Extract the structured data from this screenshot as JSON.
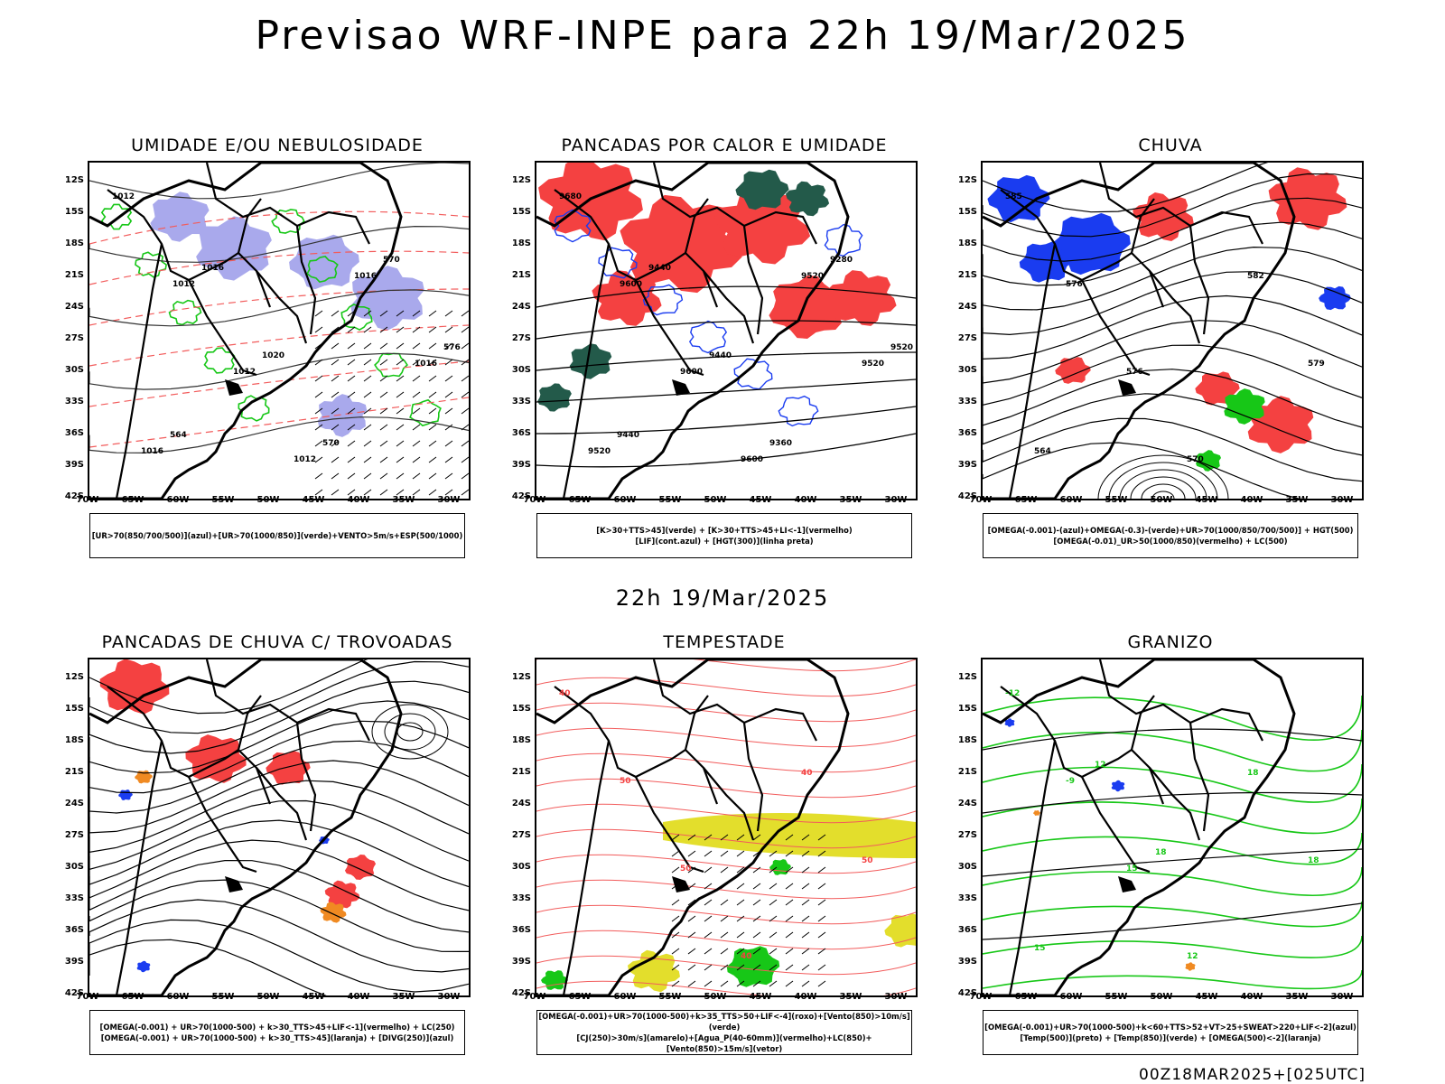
{
  "header": {
    "title": "Previsao WRF-INPE  para 22h 19/Mar/2025",
    "subtitle": "22h 19/Mar/2025",
    "footer": "00Z18MAR2025+[025UTC]"
  },
  "axes": {
    "lat_labels": [
      "12S",
      "15S",
      "18S",
      "21S",
      "24S",
      "27S",
      "30S",
      "33S",
      "36S",
      "39S",
      "42S"
    ],
    "lon_labels": [
      "70W",
      "65W",
      "60W",
      "55W",
      "50W",
      "45W",
      "40W",
      "35W",
      "30W"
    ]
  },
  "colors": {
    "red": "#f44141",
    "green": "#17c717",
    "blue": "#1a3cf0",
    "lavender": "#a9a9ec",
    "dark_teal": "#235a4a",
    "yellow": "#e3de2c",
    "orange": "#f08a22",
    "light_red_line": "#f25c5c"
  },
  "panels": [
    {
      "id": "umidade",
      "title": "UMIDADE E/OU NEBULOSIDADE",
      "legend": [
        "[UR>70(850/700/500)](azul)+[UR>70(1000/850)](verde)+VENTO>5m/s+ESP(500/1000)"
      ],
      "contour_labels": [
        "1012",
        "1012",
        "1012",
        "1012",
        "1016",
        "1016",
        "1016",
        "1016",
        "1020",
        "570",
        "570",
        "576",
        "564"
      ]
    },
    {
      "id": "pancadas-calor",
      "title": "PANCADAS POR CALOR E UMIDADE",
      "legend": [
        "[K>30+TTS>45](verde) + [K>30+TTS>45+LI<-1](vermelho)",
        "[LIF](cont.azul) + [HGT(300)](linha preta)"
      ],
      "contour_labels": [
        "9680",
        "9600",
        "9600",
        "9600",
        "9520",
        "9520",
        "9520",
        "9440",
        "9440",
        "9360",
        "9280",
        "9520",
        "9440"
      ]
    },
    {
      "id": "chuva",
      "title": "CHUVA",
      "legend": [
        "[OMEGA(-0.001)-(azul)+OMEGA(-0.3)-(verde)+UR>70(1000/850/700/500)] + HGT(500)",
        "[OMEGA(-0.01)_UR>50(1000/850)(vermelho) + LC(500)"
      ],
      "contour_labels": [
        "585",
        "576",
        "576",
        "570",
        "582",
        "579",
        "564"
      ]
    },
    {
      "id": "pancadas-trovoadas",
      "title": "PANCADAS DE CHUVA C/ TROVOADAS",
      "legend": [
        "[OMEGA(-0.001) + UR>70(1000-500) + k>30_TTS>45+LIF<-1](vermelho) + LC(250)",
        "[OMEGA(-0.001) + UR>70(1000-500) + k>30_TTS>45](laranja) + [DIVG(250)](azul)"
      ],
      "contour_labels": []
    },
    {
      "id": "tempestade",
      "title": "TEMPESTADE",
      "legend": [
        "[OMEGA(-0.001)+UR>70(1000-500)+k>35_TTS>50+LIF<-4](roxo)+[Vento(850)>10m/s](verde)",
        "[CJ(250)>30m/s](amarelo)+[Agua_P(40-60mm)](vermelho)+LC(850)+[Vento(850)>15m/s](vetor)"
      ],
      "contour_labels": [
        "40",
        "50",
        "50",
        "40",
        "40",
        "50"
      ]
    },
    {
      "id": "granizo",
      "title": "GRANIZO",
      "legend": [
        "[OMEGA(-0.001)+UR>70(1000-500)+k<60+TTS>52+VT>25+SWEAT>220+LIF<-2](azul)",
        "[Temp(500)](preto) + [Temp(850)](verde) + [OMEGA(500)<-2](laranja)"
      ],
      "contour_labels": [
        "-12",
        "-9",
        "15",
        "12",
        "18",
        "18",
        "15",
        "12",
        "18"
      ]
    }
  ]
}
